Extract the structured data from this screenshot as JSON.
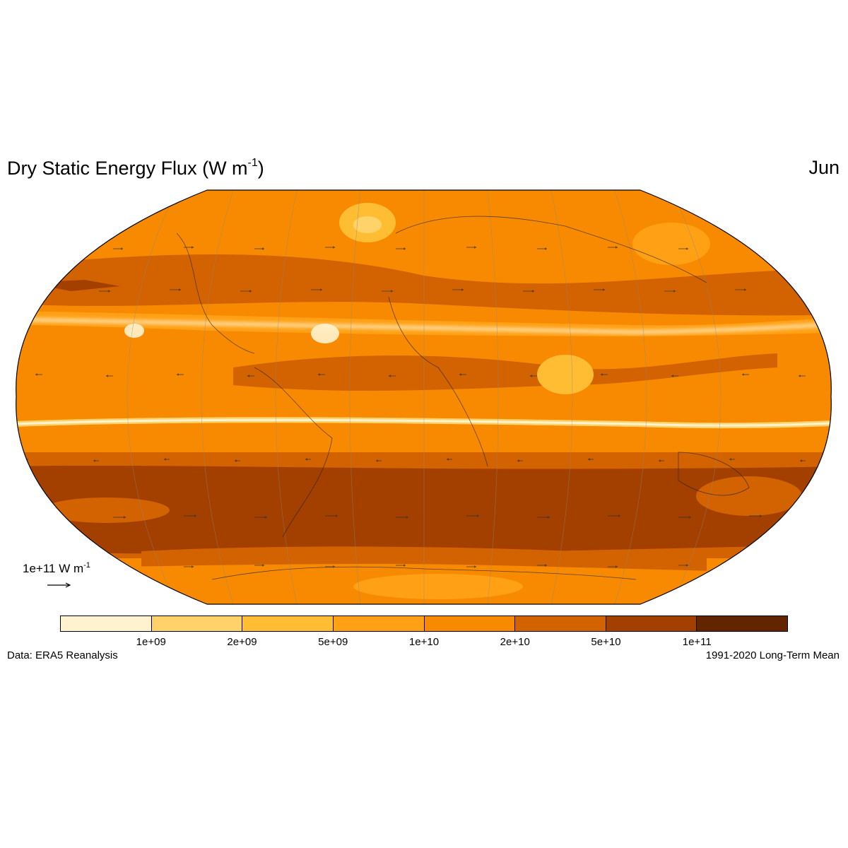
{
  "title": {
    "main": "Dry Static Energy Flux (W m",
    "sup": "-1",
    "close": ")"
  },
  "period_label": "Jun",
  "reference_vector": {
    "text": "1e+11 W m",
    "sup": "-1"
  },
  "colorbar": {
    "colors": [
      "#fff3cf",
      "#ffd36a",
      "#ffbd33",
      "#ffa015",
      "#f78a00",
      "#d26300",
      "#a34000",
      "#632400"
    ],
    "ticks": [
      "1e+09",
      "2e+09",
      "5e+09",
      "1e+10",
      "2e+10",
      "5e+10",
      "1e+11"
    ]
  },
  "footer": {
    "source": "Data: ERA5 Reanalysis",
    "period": "1991-2020 Long-Term Mean"
  }
}
